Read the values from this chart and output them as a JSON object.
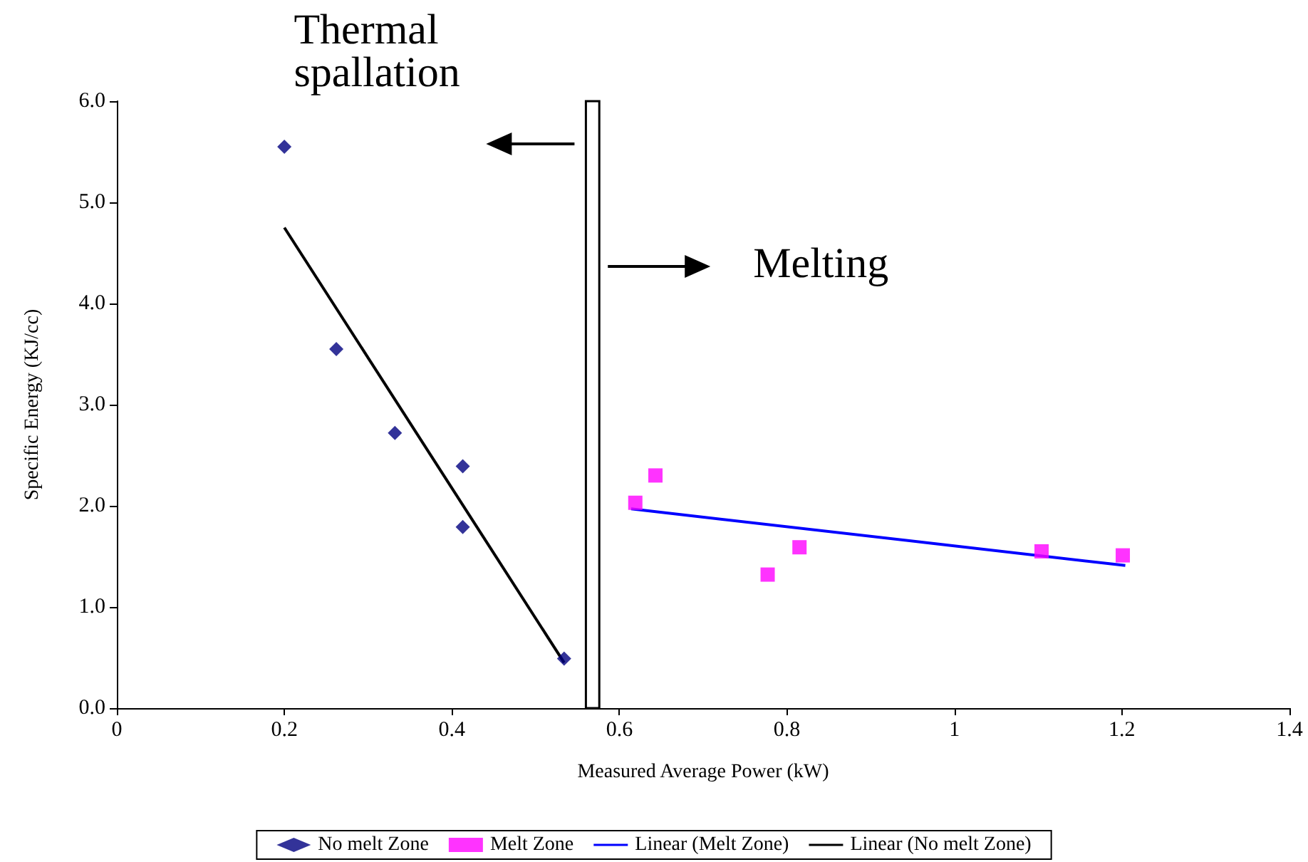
{
  "chart_data": {
    "type": "scatter",
    "xlabel": "Measured Average Power (kW)",
    "ylabel": "Specific Energy (KJ/cc)",
    "xlim": [
      0,
      1.4
    ],
    "xticks": [
      0,
      0.2,
      0.4,
      0.6,
      0.8,
      1,
      1.2,
      1.4
    ],
    "ylim": [
      0,
      6
    ],
    "yticks": [
      {
        "value": 0,
        "label": "0.0"
      },
      {
        "value": 1,
        "label": "1.0"
      },
      {
        "value": 2,
        "label": "2.0"
      },
      {
        "value": 3,
        "label": "3.0"
      },
      {
        "value": 4,
        "label": "4.0"
      },
      {
        "value": 5,
        "label": "5.0"
      },
      {
        "value": 6,
        "label": "6.0"
      }
    ],
    "grid": false,
    "legend": "bottom",
    "series": [
      {
        "name": "No melt Zone",
        "marker": "diamond",
        "color": "#000080",
        "x": [
          0.2,
          0.262,
          0.332,
          0.413,
          0.413,
          0.534
        ],
        "values": [
          5.55,
          3.55,
          2.72,
          2.39,
          1.79,
          0.49
        ]
      },
      {
        "name": "Melt Zone",
        "marker": "square",
        "color": "#ff00ff",
        "x": [
          0.619,
          0.643,
          0.777,
          0.815,
          1.104,
          1.201
        ],
        "values": [
          2.03,
          2.3,
          1.32,
          1.59,
          1.55,
          1.51
        ]
      },
      {
        "name": "Linear (Melt Zone)",
        "type": "line",
        "marker": "none",
        "color": "#0000ff",
        "x": [
          0.614,
          1.204
        ],
        "values": [
          1.97,
          1.41
        ]
      },
      {
        "name": "Linear (No melt Zone)",
        "type": "line",
        "marker": "none",
        "color": "#000000",
        "x": [
          0.2,
          0.534
        ],
        "values": [
          4.75,
          0.45
        ]
      }
    ],
    "bands": [
      {
        "axis": "x",
        "from": 0.56,
        "to": 0.576,
        "color": "#ffffff"
      }
    ],
    "annotations": [
      "Thermal spallation",
      "Melting"
    ]
  }
}
